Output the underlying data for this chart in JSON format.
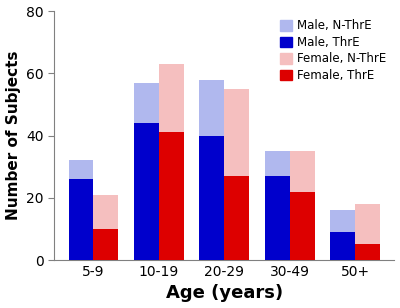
{
  "categories": [
    "5-9",
    "10-19",
    "20-29",
    "30-49",
    "50+"
  ],
  "male_thre": [
    26,
    44,
    40,
    27,
    9
  ],
  "male_nthre": [
    6,
    13,
    18,
    8,
    7
  ],
  "female_thre": [
    10,
    41,
    27,
    22,
    5
  ],
  "female_nthre": [
    11,
    22,
    28,
    13,
    13
  ],
  "male_thre_color": "#0000cc",
  "male_nthre_color": "#b0b8ee",
  "female_thre_color": "#dd0000",
  "female_nthre_color": "#f5bfbf",
  "xlabel": "Age (years)",
  "ylabel": "Number of Subjects",
  "ylim": [
    0,
    80
  ],
  "yticks": [
    0,
    20,
    40,
    60,
    80
  ],
  "bar_width": 0.38,
  "legend_labels": [
    "Male, N-ThrE",
    "Male, ThrE",
    "Female, N-ThrE",
    "Female, ThrE"
  ],
  "xlabel_fontsize": 13,
  "ylabel_fontsize": 11,
  "tick_fontsize": 10,
  "legend_fontsize": 8.5
}
